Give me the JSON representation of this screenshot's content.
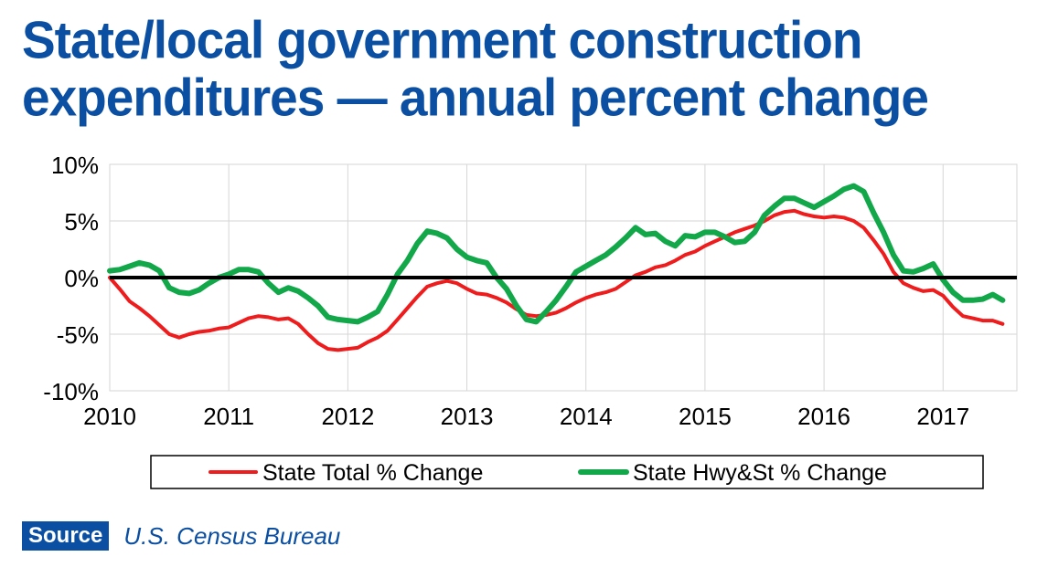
{
  "title": {
    "line1": "State/local government construction",
    "line2": "expenditures — annual percent change"
  },
  "source": {
    "badge": "Source",
    "text": "U.S. Census Bureau"
  },
  "chart_data": {
    "type": "line",
    "title": "State/local government construction expenditures — annual percent change",
    "xlabel": "",
    "ylabel": "",
    "xlim": [
      2010,
      2017.62
    ],
    "ylim": [
      -10,
      10
    ],
    "y_ticks": [
      10,
      5,
      0,
      -5,
      -10
    ],
    "y_tick_labels": [
      "10%",
      "5%",
      "0%",
      "-5%",
      "-10%"
    ],
    "x_ticks": [
      2010,
      2011,
      2012,
      2013,
      2014,
      2015,
      2016,
      2017
    ],
    "x_tick_labels": [
      "2010",
      "2011",
      "2012",
      "2013",
      "2014",
      "2015",
      "2016",
      "2017"
    ],
    "grid": "horizontal and vertical",
    "zero_line": true,
    "legend_position": "bottom",
    "series": [
      {
        "name": "State Total % Change",
        "color": "#ee1c1c",
        "points": [
          [
            2010.0,
            0.0
          ],
          [
            2010.083,
            -1.0
          ],
          [
            2010.167,
            -2.1
          ],
          [
            2010.25,
            -2.7
          ],
          [
            2010.333,
            -3.4
          ],
          [
            2010.417,
            -4.2
          ],
          [
            2010.5,
            -5.0
          ],
          [
            2010.583,
            -5.3
          ],
          [
            2010.667,
            -5.0
          ],
          [
            2010.75,
            -4.8
          ],
          [
            2010.833,
            -4.7
          ],
          [
            2010.917,
            -4.5
          ],
          [
            2011.0,
            -4.4
          ],
          [
            2011.083,
            -4.0
          ],
          [
            2011.167,
            -3.6
          ],
          [
            2011.25,
            -3.4
          ],
          [
            2011.333,
            -3.5
          ],
          [
            2011.417,
            -3.7
          ],
          [
            2011.5,
            -3.6
          ],
          [
            2011.583,
            -4.1
          ],
          [
            2011.667,
            -5.0
          ],
          [
            2011.75,
            -5.8
          ],
          [
            2011.833,
            -6.3
          ],
          [
            2011.917,
            -6.4
          ],
          [
            2012.0,
            -6.3
          ],
          [
            2012.083,
            -6.2
          ],
          [
            2012.167,
            -5.7
          ],
          [
            2012.25,
            -5.3
          ],
          [
            2012.333,
            -4.7
          ],
          [
            2012.417,
            -3.7
          ],
          [
            2012.5,
            -2.7
          ],
          [
            2012.583,
            -1.7
          ],
          [
            2012.667,
            -0.8
          ],
          [
            2012.75,
            -0.5
          ],
          [
            2012.833,
            -0.3
          ],
          [
            2012.917,
            -0.5
          ],
          [
            2013.0,
            -1.0
          ],
          [
            2013.083,
            -1.4
          ],
          [
            2013.167,
            -1.5
          ],
          [
            2013.25,
            -1.8
          ],
          [
            2013.333,
            -2.2
          ],
          [
            2013.417,
            -2.8
          ],
          [
            2013.5,
            -3.3
          ],
          [
            2013.583,
            -3.4
          ],
          [
            2013.667,
            -3.3
          ],
          [
            2013.75,
            -3.1
          ],
          [
            2013.833,
            -2.7
          ],
          [
            2013.917,
            -2.2
          ],
          [
            2014.0,
            -1.8
          ],
          [
            2014.083,
            -1.5
          ],
          [
            2014.167,
            -1.3
          ],
          [
            2014.25,
            -1.0
          ],
          [
            2014.333,
            -0.4
          ],
          [
            2014.417,
            0.2
          ],
          [
            2014.5,
            0.5
          ],
          [
            2014.583,
            0.9
          ],
          [
            2014.667,
            1.1
          ],
          [
            2014.75,
            1.5
          ],
          [
            2014.833,
            2.0
          ],
          [
            2014.917,
            2.3
          ],
          [
            2015.0,
            2.8
          ],
          [
            2015.083,
            3.2
          ],
          [
            2015.167,
            3.6
          ],
          [
            2015.25,
            4.0
          ],
          [
            2015.333,
            4.3
          ],
          [
            2015.417,
            4.6
          ],
          [
            2015.5,
            5.0
          ],
          [
            2015.583,
            5.5
          ],
          [
            2015.667,
            5.8
          ],
          [
            2015.75,
            5.9
          ],
          [
            2015.833,
            5.6
          ],
          [
            2015.917,
            5.4
          ],
          [
            2016.0,
            5.3
          ],
          [
            2016.083,
            5.4
          ],
          [
            2016.167,
            5.3
          ],
          [
            2016.25,
            5.0
          ],
          [
            2016.333,
            4.4
          ],
          [
            2016.417,
            3.3
          ],
          [
            2016.5,
            2.1
          ],
          [
            2016.583,
            0.5
          ],
          [
            2016.667,
            -0.5
          ],
          [
            2016.75,
            -0.9
          ],
          [
            2016.833,
            -1.2
          ],
          [
            2016.917,
            -1.1
          ],
          [
            2017.0,
            -1.6
          ],
          [
            2017.083,
            -2.6
          ],
          [
            2017.167,
            -3.4
          ],
          [
            2017.25,
            -3.6
          ],
          [
            2017.333,
            -3.8
          ],
          [
            2017.417,
            -3.8
          ],
          [
            2017.5,
            -4.1
          ]
        ]
      },
      {
        "name": "State Hwy&St % Change",
        "color": "#12a84a",
        "points": [
          [
            2010.0,
            0.6
          ],
          [
            2010.083,
            0.7
          ],
          [
            2010.167,
            1.0
          ],
          [
            2010.25,
            1.3
          ],
          [
            2010.333,
            1.1
          ],
          [
            2010.417,
            0.6
          ],
          [
            2010.5,
            -0.9
          ],
          [
            2010.583,
            -1.3
          ],
          [
            2010.667,
            -1.4
          ],
          [
            2010.75,
            -1.1
          ],
          [
            2010.833,
            -0.5
          ],
          [
            2010.917,
            0.0
          ],
          [
            2011.0,
            0.3
          ],
          [
            2011.083,
            0.7
          ],
          [
            2011.167,
            0.7
          ],
          [
            2011.25,
            0.5
          ],
          [
            2011.333,
            -0.5
          ],
          [
            2011.417,
            -1.3
          ],
          [
            2011.5,
            -0.9
          ],
          [
            2011.583,
            -1.2
          ],
          [
            2011.667,
            -1.8
          ],
          [
            2011.75,
            -2.5
          ],
          [
            2011.833,
            -3.5
          ],
          [
            2011.917,
            -3.7
          ],
          [
            2012.0,
            -3.8
          ],
          [
            2012.083,
            -3.9
          ],
          [
            2012.167,
            -3.5
          ],
          [
            2012.25,
            -3.0
          ],
          [
            2012.333,
            -1.5
          ],
          [
            2012.417,
            0.3
          ],
          [
            2012.5,
            1.5
          ],
          [
            2012.583,
            3.0
          ],
          [
            2012.667,
            4.1
          ],
          [
            2012.75,
            3.9
          ],
          [
            2012.833,
            3.5
          ],
          [
            2012.917,
            2.5
          ],
          [
            2013.0,
            1.8
          ],
          [
            2013.083,
            1.5
          ],
          [
            2013.167,
            1.3
          ],
          [
            2013.25,
            0.0
          ],
          [
            2013.333,
            -1.0
          ],
          [
            2013.417,
            -2.5
          ],
          [
            2013.5,
            -3.7
          ],
          [
            2013.583,
            -3.9
          ],
          [
            2013.667,
            -3.0
          ],
          [
            2013.75,
            -2.0
          ],
          [
            2013.833,
            -0.8
          ],
          [
            2013.917,
            0.5
          ],
          [
            2014.0,
            1.0
          ],
          [
            2014.083,
            1.5
          ],
          [
            2014.167,
            2.0
          ],
          [
            2014.25,
            2.7
          ],
          [
            2014.333,
            3.5
          ],
          [
            2014.417,
            4.4
          ],
          [
            2014.5,
            3.8
          ],
          [
            2014.583,
            3.9
          ],
          [
            2014.667,
            3.2
          ],
          [
            2014.75,
            2.8
          ],
          [
            2014.833,
            3.7
          ],
          [
            2014.917,
            3.6
          ],
          [
            2015.0,
            4.0
          ],
          [
            2015.083,
            4.0
          ],
          [
            2015.167,
            3.6
          ],
          [
            2015.25,
            3.1
          ],
          [
            2015.333,
            3.2
          ],
          [
            2015.417,
            4.0
          ],
          [
            2015.5,
            5.5
          ],
          [
            2015.583,
            6.3
          ],
          [
            2015.667,
            7.0
          ],
          [
            2015.75,
            7.0
          ],
          [
            2015.833,
            6.6
          ],
          [
            2015.917,
            6.2
          ],
          [
            2016.0,
            6.7
          ],
          [
            2016.083,
            7.2
          ],
          [
            2016.167,
            7.8
          ],
          [
            2016.25,
            8.1
          ],
          [
            2016.333,
            7.6
          ],
          [
            2016.417,
            5.7
          ],
          [
            2016.5,
            4.0
          ],
          [
            2016.583,
            2.0
          ],
          [
            2016.667,
            0.6
          ],
          [
            2016.75,
            0.5
          ],
          [
            2016.833,
            0.8
          ],
          [
            2016.917,
            1.2
          ],
          [
            2017.0,
            -0.2
          ],
          [
            2017.083,
            -1.3
          ],
          [
            2017.167,
            -2.0
          ],
          [
            2017.25,
            -2.0
          ],
          [
            2017.333,
            -1.9
          ],
          [
            2017.417,
            -1.5
          ],
          [
            2017.5,
            -2.0
          ]
        ]
      }
    ]
  }
}
